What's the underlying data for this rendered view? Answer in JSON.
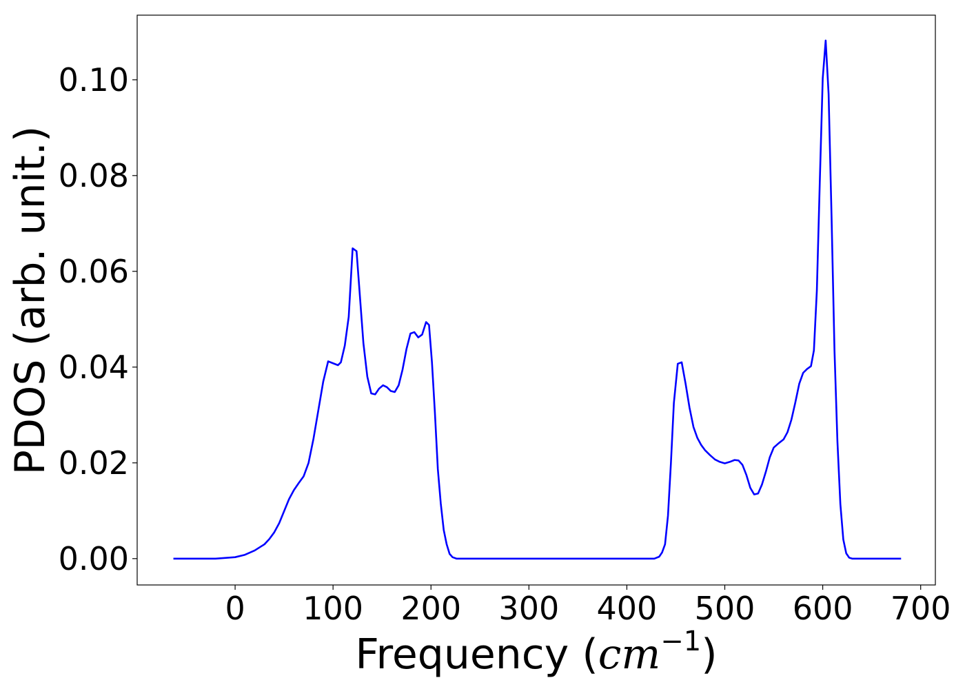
{
  "chart_data": {
    "type": "line",
    "title": "",
    "xlabel_main": "Frequency (",
    "xlabel_math": "cm",
    "xlabel_exp": "−1",
    "xlabel_close": ")",
    "ylabel": "PDOS (arb. unit.)",
    "xlim": [
      -100,
      715
    ],
    "ylim": [
      -0.0055,
      0.1135
    ],
    "xticks": [
      0,
      100,
      200,
      300,
      400,
      500,
      600,
      700
    ],
    "xtick_labels": [
      "0",
      "100",
      "200",
      "300",
      "400",
      "500",
      "600",
      "700"
    ],
    "yticks": [
      0.0,
      0.02,
      0.04,
      0.06,
      0.08,
      0.1
    ],
    "ytick_labels": [
      "0.00",
      "0.02",
      "0.04",
      "0.06",
      "0.08",
      "0.10"
    ],
    "grid": false,
    "legend": "none",
    "series": [
      {
        "color": "#0000ff",
        "x": [
          -63,
          -20,
          0,
          10,
          20,
          30,
          35,
          40,
          45,
          50,
          55,
          60,
          65,
          70,
          75,
          80,
          85,
          90,
          95,
          100,
          105,
          108,
          112,
          116,
          120,
          124,
          127,
          131,
          135,
          139,
          143,
          147,
          151,
          155,
          159,
          163,
          167,
          171,
          175,
          179,
          183,
          187,
          191,
          195,
          198,
          201,
          204,
          207,
          210,
          213,
          216,
          219,
          222,
          226,
          230,
          300,
          400,
          428,
          433,
          436,
          439,
          442,
          445,
          448,
          452,
          456,
          460,
          464,
          468,
          472,
          476,
          480,
          485,
          490,
          495,
          500,
          505,
          510,
          514,
          518,
          522,
          526,
          530,
          534,
          538,
          542,
          546,
          550,
          555,
          560,
          564,
          568,
          572,
          576,
          580,
          584,
          588,
          591,
          594,
          597,
          600,
          603,
          606,
          609,
          612,
          615,
          618,
          621,
          624,
          627,
          630,
          633,
          636,
          640,
          680
        ],
        "y": [
          0.0,
          0.0,
          0.0003,
          0.0008,
          0.0017,
          0.003,
          0.0041,
          0.0055,
          0.0074,
          0.0099,
          0.0124,
          0.0143,
          0.0158,
          0.0172,
          0.02,
          0.025,
          0.031,
          0.037,
          0.0412,
          0.0408,
          0.0404,
          0.041,
          0.0445,
          0.0505,
          0.0648,
          0.0642,
          0.056,
          0.045,
          0.038,
          0.0345,
          0.0343,
          0.0355,
          0.0362,
          0.0358,
          0.035,
          0.0348,
          0.0362,
          0.0395,
          0.0438,
          0.047,
          0.0473,
          0.0462,
          0.0468,
          0.0494,
          0.0488,
          0.041,
          0.0305,
          0.0187,
          0.0115,
          0.006,
          0.003,
          0.001,
          0.0003,
          0.0,
          0.0,
          0.0,
          0.0,
          0.0,
          0.0004,
          0.0013,
          0.003,
          0.009,
          0.02,
          0.0325,
          0.0407,
          0.041,
          0.0365,
          0.0315,
          0.0275,
          0.0252,
          0.0237,
          0.0226,
          0.0216,
          0.0207,
          0.0202,
          0.0199,
          0.0202,
          0.0206,
          0.0205,
          0.0196,
          0.0175,
          0.0148,
          0.0134,
          0.0136,
          0.0155,
          0.0182,
          0.0212,
          0.0232,
          0.0241,
          0.0249,
          0.0264,
          0.029,
          0.0326,
          0.0365,
          0.0388,
          0.0396,
          0.0402,
          0.0435,
          0.056,
          0.0787,
          0.1003,
          0.1082,
          0.097,
          0.0715,
          0.0435,
          0.0245,
          0.0114,
          0.004,
          0.0011,
          0.0002,
          0.0,
          0.0,
          0.0,
          0.0,
          0.0
        ]
      }
    ]
  }
}
